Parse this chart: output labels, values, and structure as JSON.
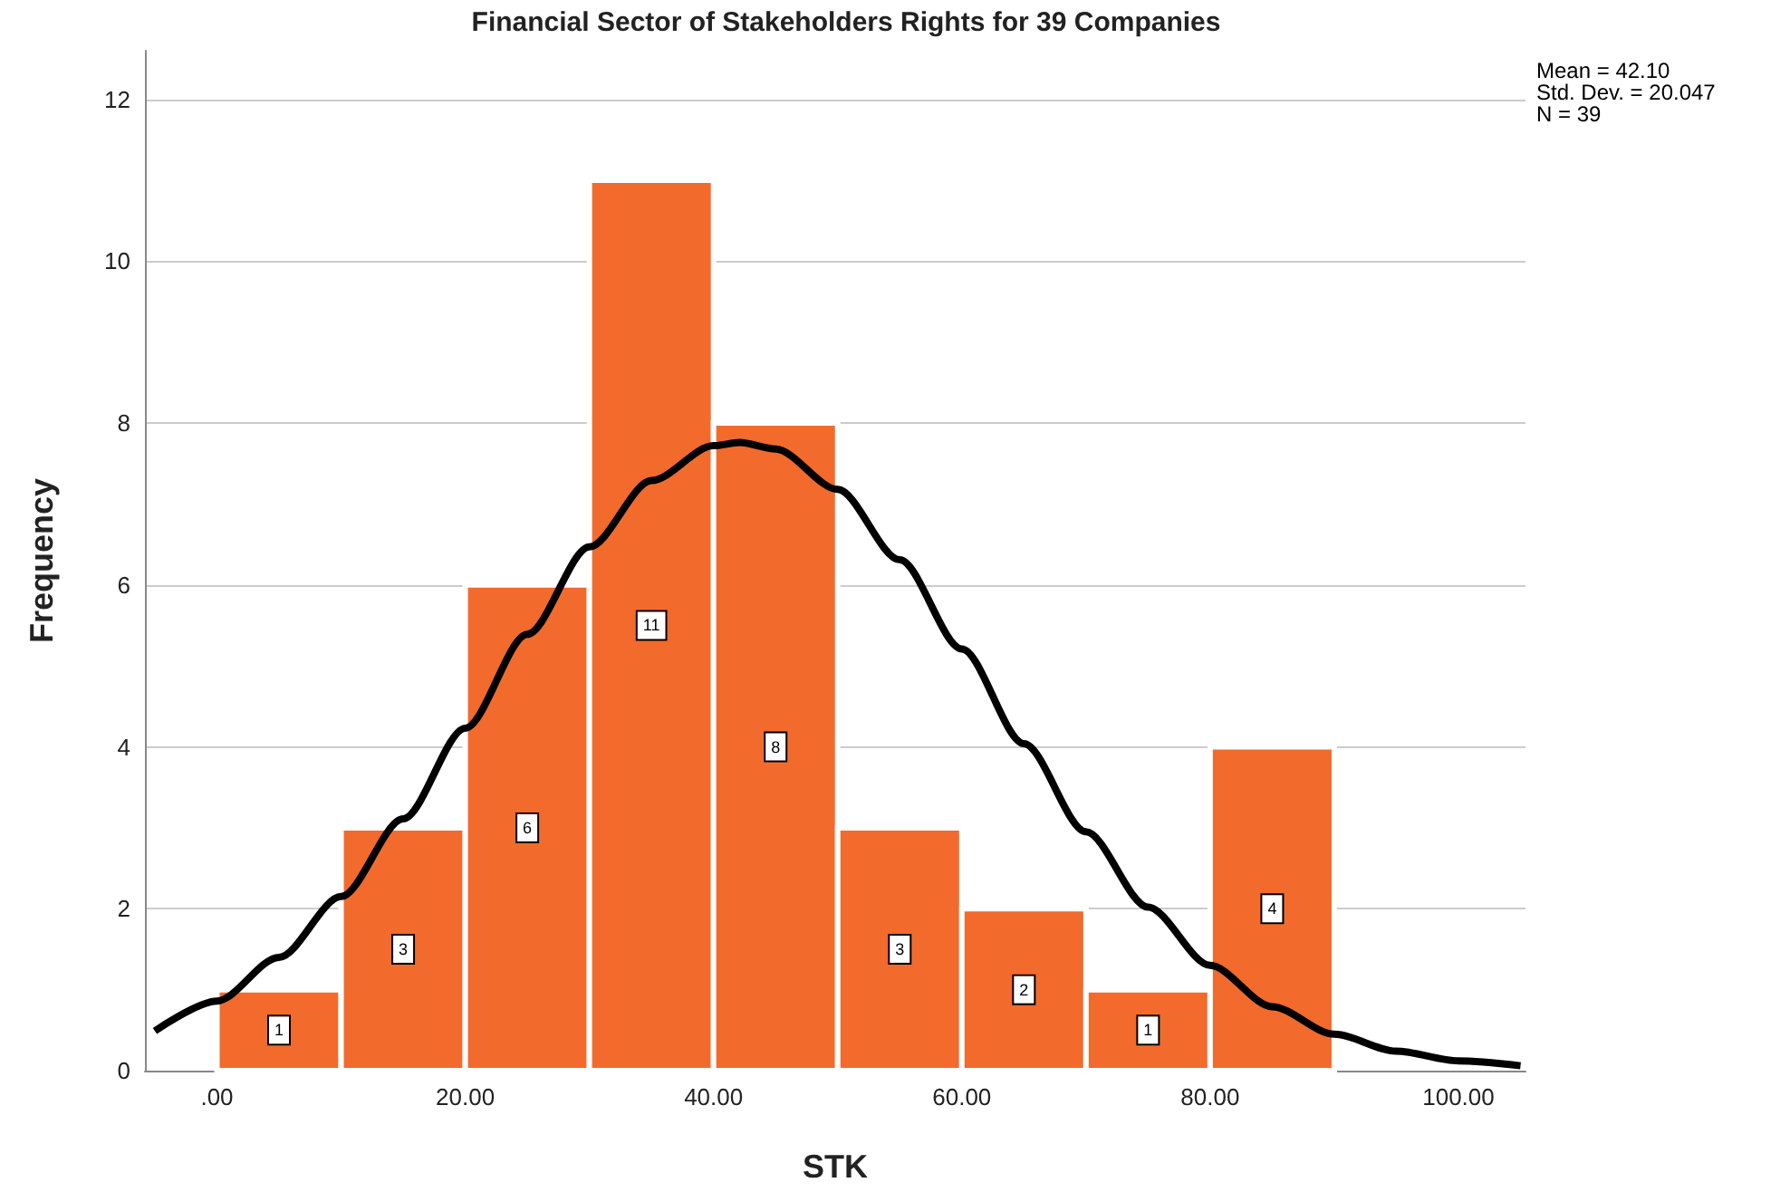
{
  "chart_data": {
    "type": "histogram",
    "title": "Financial Sector of Stakeholders Rights for 39 Companies",
    "xlabel": "STK",
    "ylabel": "Frequency",
    "bins": [
      0,
      10,
      20,
      30,
      40,
      50,
      60,
      70,
      80,
      90
    ],
    "values": [
      1,
      3,
      6,
      11,
      8,
      3,
      2,
      1,
      4
    ],
    "color": "#f26b2c",
    "value_labels": [
      "1",
      "3",
      "6",
      "11",
      "8",
      "3",
      "2",
      "1",
      "4"
    ],
    "series": [
      {
        "type": "line",
        "color": "#000000",
        "marker": "none",
        "x": [
          -5,
          0,
          5,
          10,
          15,
          20,
          25,
          30,
          35,
          40,
          42.1,
          45,
          50,
          55,
          60,
          65,
          70,
          75,
          80,
          85,
          90,
          95,
          100,
          105
        ],
        "values": [
          0.49,
          0.86,
          1.4,
          2.15,
          3.11,
          4.23,
          5.39,
          6.47,
          7.29,
          7.72,
          7.76,
          7.68,
          7.18,
          6.31,
          5.21,
          4.04,
          2.95,
          2.02,
          1.3,
          0.79,
          0.45,
          0.24,
          0.12,
          0.06
        ]
      }
    ],
    "xlim": [
      -5.8,
      105.4
    ],
    "ylim": [
      0,
      12.6
    ],
    "xticks": [
      {
        "value": 0,
        "label": ".00"
      },
      {
        "value": 20,
        "label": "20.00"
      },
      {
        "value": 40,
        "label": "40.00"
      },
      {
        "value": 60,
        "label": "60.00"
      },
      {
        "value": 80,
        "label": "80.00"
      },
      {
        "value": 100,
        "label": "100.00"
      }
    ],
    "yticks": [
      0,
      2,
      4,
      6,
      8,
      10,
      12
    ],
    "grid": "y",
    "annotations": [
      "Mean = 42.10\nStd. Dev. = 20.047\nN = 39"
    ]
  }
}
